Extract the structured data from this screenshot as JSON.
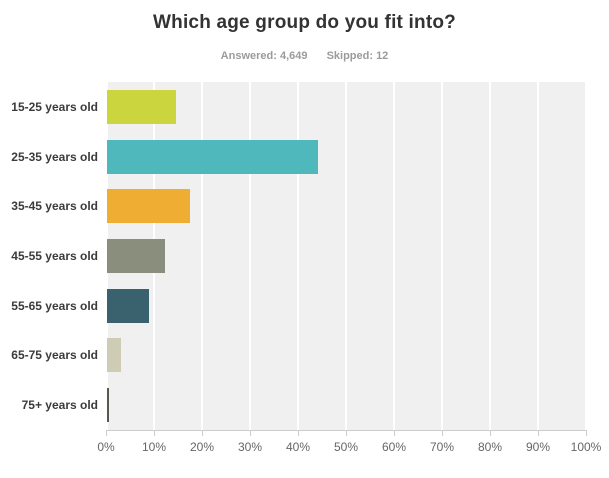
{
  "header": {
    "title": "Which age group do you fit into?",
    "answered_label": "Answered: 4,649",
    "skipped_label": "Skipped: 12"
  },
  "chart_data": {
    "type": "bar",
    "orientation": "horizontal",
    "title": "Which age group do you fit into?",
    "subtitle": "Answered: 4,649   Skipped: 12",
    "categories": [
      "15-25 years old",
      "25-35 years old",
      "35-45 years old",
      "45-55 years old",
      "55-65 years old",
      "65-75 years old",
      "75+ years old"
    ],
    "values": [
      14.4,
      44.0,
      17.3,
      12.0,
      8.8,
      3.0,
      0.5
    ],
    "unit": "%",
    "bar_colors": [
      "#CBD53D",
      "#4FB8BC",
      "#F0AD33",
      "#8A8E7D",
      "#3A616E",
      "#CFCCB6",
      "#55584A"
    ],
    "x_tick_labels": [
      "0%",
      "10%",
      "20%",
      "30%",
      "40%",
      "50%",
      "60%",
      "70%",
      "80%",
      "90%",
      "100%"
    ],
    "xlim": [
      0,
      100
    ],
    "grid": true,
    "legend": "none",
    "plot_background": "#f0f0f0",
    "gridline_color": "#ffffff",
    "axis_color": "#cccccc",
    "tick_label_color": "#666666",
    "category_label_color": "#3b3b3b"
  }
}
